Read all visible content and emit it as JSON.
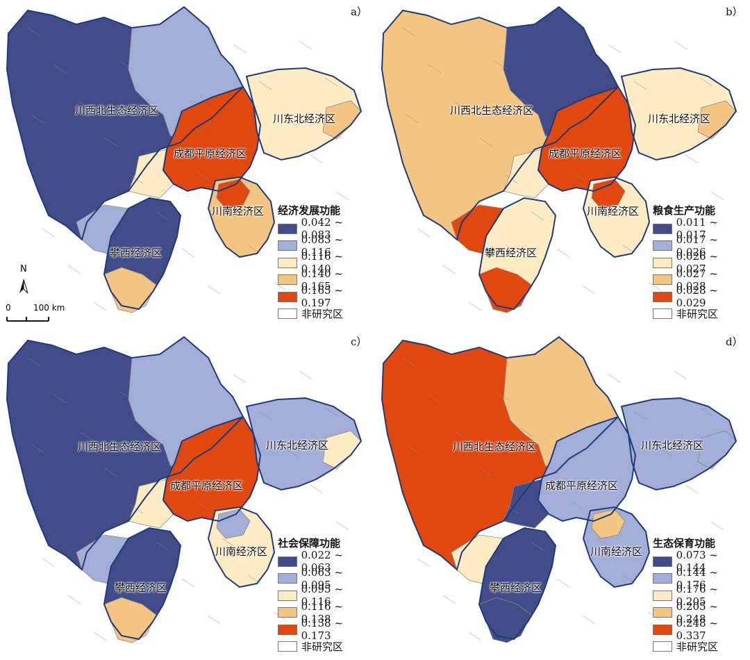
{
  "colors": {
    "class1": "#414c89",
    "class2": "#a3aed8",
    "class3": "#fdebc4",
    "class4": "#f4c582",
    "class5": "#e0480f",
    "nonstudy": "#ffffff",
    "zone_border": "#1f3a78",
    "county_border": "#8a8a8a"
  },
  "zones": {
    "northwest": "川西北生态经济区",
    "northeast": "川东北经济区",
    "chengdu": "成都平原经济区",
    "south": "川南经济区",
    "panxi": "攀西经济区"
  },
  "north_arrow": "N",
  "scalebar": {
    "zero": "0",
    "distance": "100 km"
  },
  "panels": [
    {
      "letter": "a）",
      "legend_title": "经济发展功能",
      "classes": [
        "0.042 ~ 0.083",
        "0.083 ~ 0.116",
        "0.116 ~ 0.140",
        "0.140 ~ 0.165",
        "0.165 ~ 0.197"
      ],
      "nonstudy_label": "非研究区"
    },
    {
      "letter": "b）",
      "legend_title": "粮食生产功能",
      "classes": [
        "0.011 ~ 0.017",
        "0.017 ~ 0.026",
        "0.026 ~ 0.027",
        "0.027 ~ 0.028",
        "0.028 ~ 0.029"
      ],
      "nonstudy_label": "非研究区"
    },
    {
      "letter": "c）",
      "legend_title": "社会保障功能",
      "classes": [
        "0.022 ~ 0.063",
        "0.063 ~ 0.095",
        "0.095 ~ 0.116",
        "0.116 ~ 0.138",
        "0.138 ~ 0.173"
      ],
      "nonstudy_label": "非研究区"
    },
    {
      "letter": "d）",
      "legend_title": "生态保育功能",
      "classes": [
        "0.073 ~ 0.144",
        "0.144 ~ 0.176",
        "0.176 ~ 0.205",
        "0.205 ~ 0.248",
        "0.248 ~ 0.337"
      ],
      "nonstudy_label": "非研究区"
    }
  ],
  "zone_classes": [
    {
      "northwest": 1,
      "northwest_e": 2,
      "panxi": 1,
      "panxi_w": 2,
      "panxi_s": 4,
      "chengdu": 5,
      "chengdu_w": 3,
      "northeast": 3,
      "northeast_e": 4,
      "south": 4,
      "south_n": 5
    },
    {
      "northwest": 4,
      "northwest_e": 1,
      "panxi": 3,
      "panxi_w": 5,
      "panxi_s": 5,
      "chengdu": 5,
      "chengdu_w": 3,
      "northeast": 3,
      "northeast_e": 4,
      "south": 3,
      "south_n": 5
    },
    {
      "northwest": 1,
      "northwest_e": 2,
      "panxi": 1,
      "panxi_w": 2,
      "panxi_s": 4,
      "chengdu": 5,
      "chengdu_w": 3,
      "northeast": 2,
      "northeast_e": 3,
      "south": 3,
      "south_n": 2
    },
    {
      "northwest": 5,
      "northwest_e": 4,
      "panxi": 1,
      "panxi_w": 3,
      "panxi_s": 1,
      "chengdu": 2,
      "chengdu_w": 1,
      "northeast": 2,
      "northeast_e": 2,
      "south": 2,
      "south_n": 4
    }
  ]
}
